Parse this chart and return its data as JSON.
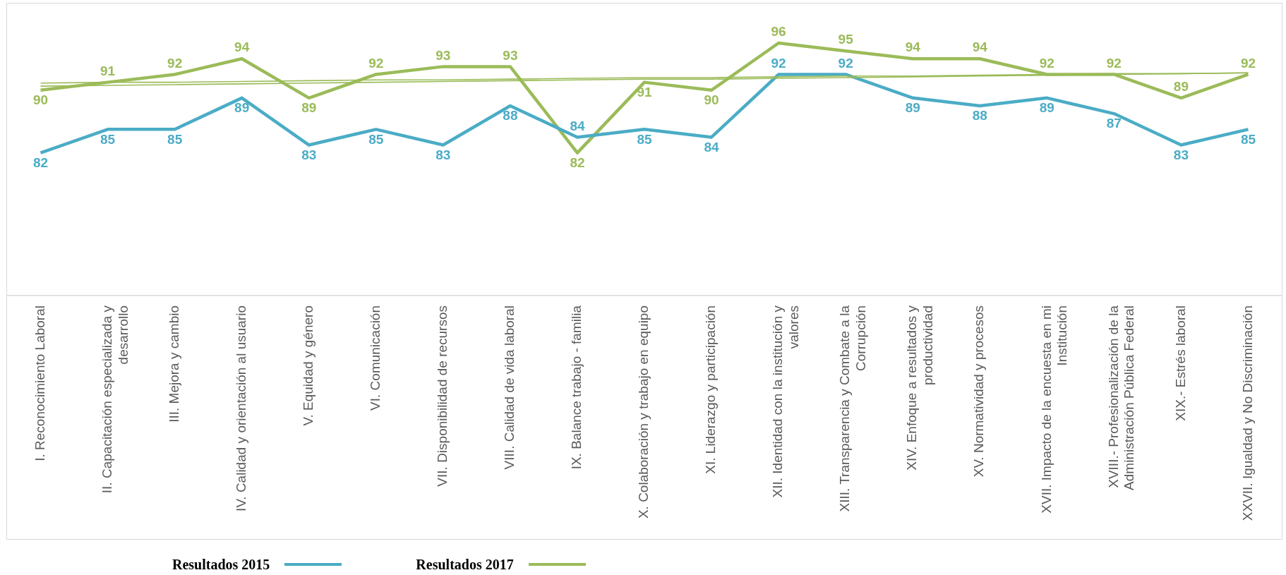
{
  "chart_data": {
    "type": "line",
    "categories": [
      "I. Reconocimiento Laboral",
      "II. Capacitación especializada y desarrollo",
      "III. Mejora y cambio",
      "IV. Calidad y orientación al usuario",
      "V. Equidad y género",
      "VI. Comunicación",
      "VII. Disponibilidad de recursos",
      "VIII. Calidad de vida laboral",
      "IX. Balance trabajo - familia",
      "X. Colaboración y trabajo en equipo",
      "XI. Liderazgo y participación",
      "XII. Identidad con la institución y valores",
      "XIII. Transparencia y Combate a la Corrupción",
      "XIV. Enfoque a resultados y productividad",
      "XV. Normatividad y procesos",
      "XVII. Impacto de la encuesta en mi Institución",
      "XVIII.- Profesionalización de la Administración Pública Federal",
      "XIX.- Estrés laboral",
      "XXVII. Igualdad y No Discriminación"
    ],
    "series": [
      {
        "name": "Resultados 2015",
        "color": "#4bacc6",
        "values": [
          82,
          85,
          85,
          89,
          83,
          85,
          83,
          88,
          84,
          85,
          84,
          92,
          92,
          89,
          88,
          89,
          87,
          83,
          85
        ],
        "value_labels": [
          "82",
          "85",
          "85",
          "89",
          "83",
          "85",
          "83",
          "88",
          "84",
          "85",
          "84",
          "92",
          "92",
          "89",
          "88",
          "89",
          "87",
          "83",
          "85"
        ]
      },
      {
        "name": "Resultados 2017",
        "color": "#9bbb59",
        "values": [
          90,
          91,
          92,
          94,
          89,
          92,
          93,
          93,
          82,
          91,
          90,
          96,
          95,
          94,
          94,
          92,
          92,
          89,
          92
        ],
        "value_labels": [
          "90",
          "91",
          "92",
          "94",
          "89",
          "92",
          "93",
          "93",
          "82",
          "91",
          "90",
          "96",
          "95",
          "94",
          "94",
          "92",
          "92",
          "89",
          "92"
        ]
      },
      {
        "type": "line",
        "color": "#9bbb59",
        "values": [
          90.9,
          91.0,
          91.0,
          91.1,
          91.2,
          91.3,
          91.3,
          91.4,
          91.5,
          91.6,
          91.6,
          91.7,
          91.8,
          91.8,
          91.9,
          92.0,
          92.1,
          92.1,
          92.2
        ]
      },
      {
        "type": "line",
        "color": "#9bbb59",
        "values": [
          90.5,
          90.6,
          90.7,
          90.8,
          90.9,
          91.0,
          91.1,
          91.2,
          91.3,
          91.4,
          91.4,
          91.5,
          91.6,
          91.7,
          91.8,
          91.9,
          92.0,
          92.1,
          92.2
        ]
      }
    ],
    "legend": "bottom",
    "grid": false
  }
}
